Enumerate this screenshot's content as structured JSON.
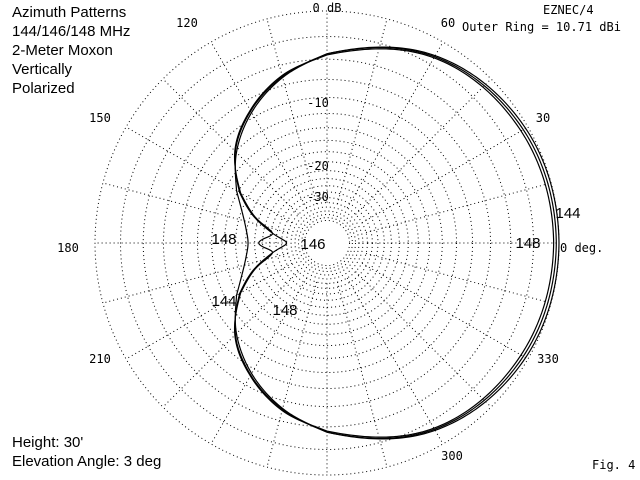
{
  "chart_data": {
    "type": "polar-line",
    "title_lines": [
      "Azimuth Patterns",
      "144/146/148 MHz",
      "2-Meter Moxon",
      "Vertically",
      "Polarized"
    ],
    "program": "EZNEC/4",
    "outer_ring_text": "Outer Ring = 10.71 dBi",
    "outer_ring_dbi": 10.71,
    "radial_scale": "ARRL log-periodic (0.89 per 2 dB)",
    "ring_labels": [
      {
        "text": "0 dB",
        "db": 0
      },
      {
        "text": "-10",
        "db": -10
      },
      {
        "text": "-20",
        "db": -20
      },
      {
        "text": "-30",
        "db": -30
      }
    ],
    "angle_labels": [
      {
        "text": "0 deg.",
        "angle": 0
      },
      {
        "text": "30",
        "angle": 30
      },
      {
        "text": "60",
        "angle": 60
      },
      {
        "text": "120",
        "angle": 120
      },
      {
        "text": "150",
        "angle": 150
      },
      {
        "text": "180",
        "angle": 180
      },
      {
        "text": "210",
        "angle": 210
      },
      {
        "text": "300",
        "angle": 300
      },
      {
        "text": "330",
        "angle": 330
      }
    ],
    "series": [
      {
        "name": "144",
        "angles": [
          0,
          30,
          60,
          90,
          105,
          120,
          135,
          150,
          160,
          170,
          180,
          190,
          200,
          210,
          225,
          240,
          255,
          270,
          300,
          330,
          360
        ],
        "gain_db": [
          0,
          -0.2,
          -1.2,
          -3.5,
          -5.2,
          -7.4,
          -10.2,
          -13.7,
          -16.2,
          -17.8,
          -18.5,
          -17.8,
          -16.2,
          -13.7,
          -10.2,
          -7.4,
          -5.2,
          -3.5,
          -1.2,
          -0.2,
          0
        ]
      },
      {
        "name": "146",
        "angles": [
          0,
          30,
          60,
          90,
          105,
          120,
          135,
          150,
          160,
          170,
          180,
          190,
          200,
          210,
          225,
          240,
          255,
          270,
          300,
          330,
          360
        ],
        "gain_db": [
          -0.2,
          -0.4,
          -1.3,
          -3.5,
          -5.1,
          -7.2,
          -10.0,
          -14.3,
          -18.7,
          -24.7,
          -30.0,
          -24.7,
          -18.7,
          -14.3,
          -10.0,
          -7.2,
          -5.1,
          -3.5,
          -1.3,
          -0.4,
          -0.2
        ]
      },
      {
        "name": "148",
        "angles": [
          0,
          30,
          60,
          90,
          105,
          120,
          135,
          150,
          160,
          170,
          180,
          190,
          200,
          210,
          225,
          240,
          255,
          270,
          300,
          330,
          360
        ],
        "gain_db": [
          -0.4,
          -0.6,
          -1.4,
          -3.6,
          -5.0,
          -7.1,
          -9.9,
          -14.5,
          -19.0,
          -24.6,
          -21.0,
          -24.6,
          -19.0,
          -14.5,
          -9.9,
          -7.1,
          -5.0,
          -3.6,
          -1.4,
          -0.6,
          -0.4
        ]
      }
    ],
    "curve_labels": [
      {
        "text": "144",
        "series": "144"
      },
      {
        "text": "148",
        "series": "148"
      },
      {
        "text": "148",
        "series": "148"
      },
      {
        "text": "146",
        "series": "146"
      },
      {
        "text": "144",
        "series": "144"
      },
      {
        "text": "148",
        "series": "148"
      }
    ],
    "height_text": "Height: 30'",
    "elevation_text": "Elevation Angle:  3 deg",
    "fig_label": "Fig. 4"
  }
}
